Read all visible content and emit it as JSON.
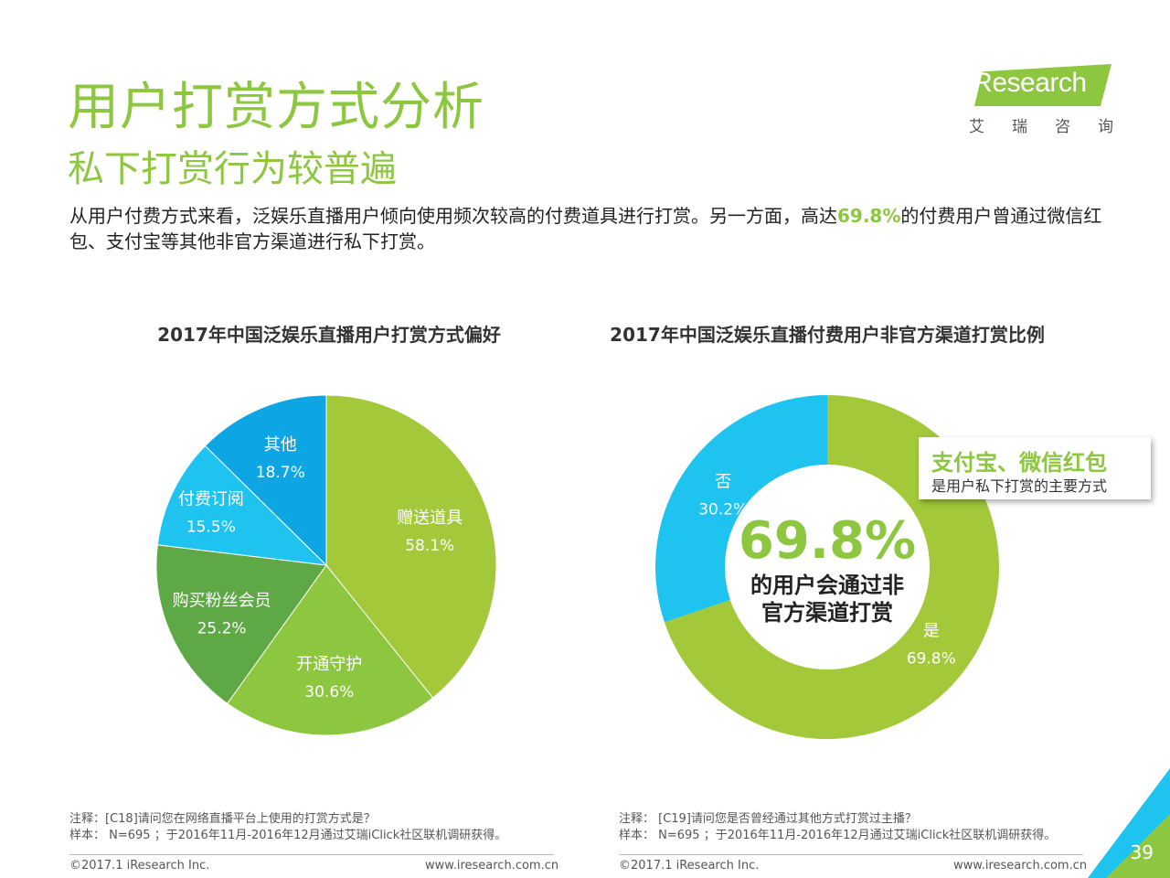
{
  "header": {
    "title": "用户打赏方式分析",
    "subtitle": "私下打赏行为较普遍"
  },
  "logo": {
    "brand": "iResearch",
    "cn": [
      "艾",
      "瑞",
      "咨",
      "询"
    ],
    "color": "#8dc63f"
  },
  "intro": {
    "before": "从用户付费方式来看，泛娱乐直播用户倾向使用频次较高的付费道具进行打赏。另一方面，高达",
    "highlight": "69.8%",
    "after": "的付费用户曾通过微信红包、支付宝等其他非官方渠道进行私下打赏。"
  },
  "chart_data": [
    {
      "type": "pie",
      "title": "2017年中国泛娱乐直播用户打赏方式偏好",
      "categories": [
        "赠送道具",
        "开通守护",
        "购买粉丝会员",
        "付费订阅",
        "其他"
      ],
      "values": [
        58.1,
        30.6,
        25.2,
        15.5,
        18.7
      ],
      "value_labels": [
        "58.1%",
        "30.6%",
        "25.2%",
        "15.5%",
        "18.7%"
      ],
      "colors": [
        "#a3c93a",
        "#8dc63f",
        "#5ea845",
        "#1fc3f0",
        "#0ea5e4"
      ]
    },
    {
      "type": "pie",
      "title": "2017年中国泛娱乐直播付费用户非官方渠道打赏比例",
      "donut": true,
      "categories": [
        "是",
        "否"
      ],
      "values": [
        69.8,
        30.2
      ],
      "value_labels": [
        "69.8%",
        "30.2%"
      ],
      "colors": [
        "#a3c93a",
        "#1fc3f0"
      ],
      "center_value": "69.8%",
      "center_text": [
        "的用户会通过非",
        "官方渠道打赏"
      ]
    }
  ],
  "callout": {
    "title": "支付宝、微信红包",
    "subtitle": "是用户私下打赏的主要方式"
  },
  "notes": {
    "left": [
      "注释：[C18]请问您在网络直播平台上使用的打赏方式是？",
      "样本： N=695 ；于2016年11月-2016年12月通过艾瑞iClick社区联机调研获得。"
    ],
    "right": [
      "注释： [C19]请问您是否曾经通过其他方式打赏过主播？",
      "样本： N=695 ；于2016年11月-2016年12月通过艾瑞iClick社区联机调研获得。"
    ]
  },
  "footer": {
    "copyright": "©2017.1 iResearch Inc.",
    "url": "www.iresearch.com.cn",
    "page": "39"
  }
}
